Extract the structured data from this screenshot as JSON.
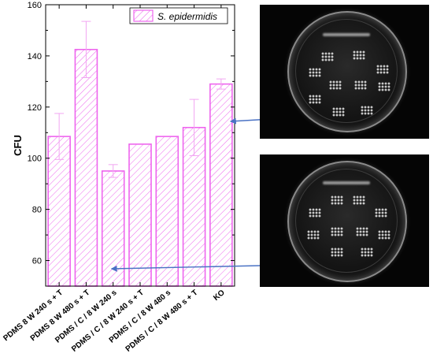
{
  "chart_data": {
    "type": "bar",
    "categories": [
      "PDMS 8 W 240 s + T",
      "PDMS 8 W 480 s + T",
      "PDMS / C / 8 W 240 s",
      "PDMS / C / 8 W 240 s + T",
      "PDMS / C / 8 W 480 s",
      "PDMS / C / 8 W 480 s + T",
      "KO"
    ],
    "values": [
      108.5,
      142.5,
      95,
      105.5,
      108.5,
      112,
      129
    ],
    "errors_upper": [
      9,
      11,
      2.5,
      0,
      0,
      11,
      2
    ],
    "errors_lower": [
      9,
      11,
      2.5,
      0,
      0,
      11,
      2
    ],
    "ylabel": "CFU",
    "xlabel": "",
    "ylim": [
      50,
      160
    ],
    "yticks": [
      60,
      80,
      100,
      120,
      140,
      160
    ],
    "legend": {
      "entry": "S. epidermidis",
      "placement": "top-right"
    },
    "grid": false,
    "colors": {
      "bar_stroke": "#ee66ee",
      "bar_hatch": "#ee66ee",
      "error_bar": "#f2a6f2",
      "axis": "#000000",
      "arrow": "#4a72c4"
    },
    "annotations": [
      {
        "from": "top-photo",
        "to_category": "KO"
      },
      {
        "from": "bottom-photo",
        "to_category": "PDMS / C / 8 W 240 s"
      }
    ]
  },
  "images": {
    "top_photo": "petri-dish-photo",
    "bottom_photo": "petri-dish-photo"
  }
}
